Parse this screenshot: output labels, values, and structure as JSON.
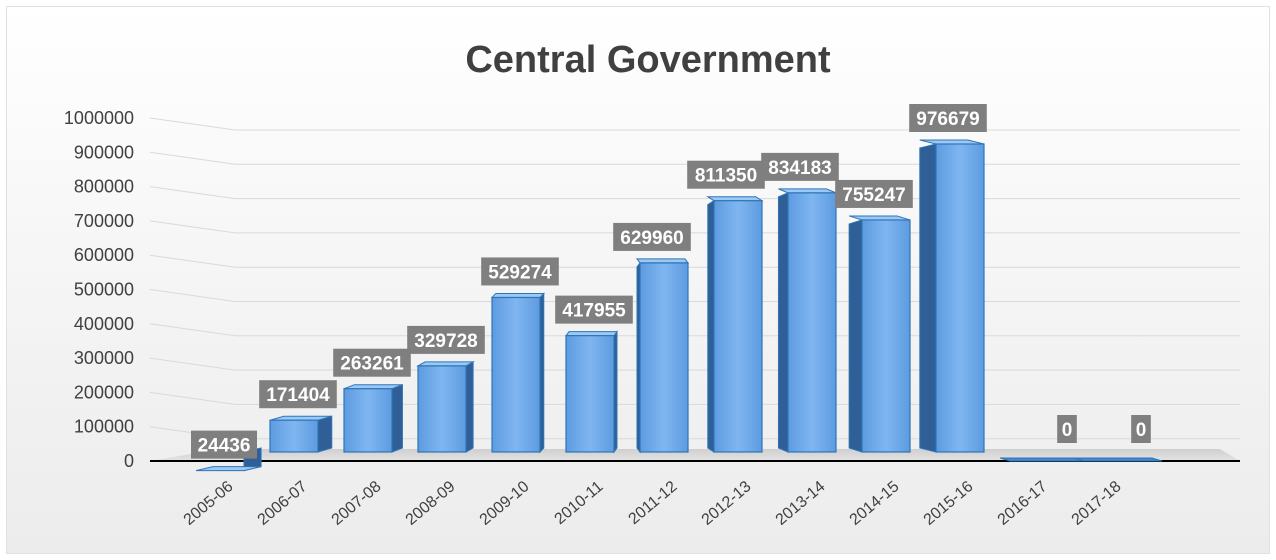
{
  "chart_data": {
    "type": "bar",
    "style": "3d-column",
    "title": "Central Government",
    "xlabel": "",
    "ylabel": "",
    "categories": [
      "2005-06",
      "2006-07",
      "2007-08",
      "2008-09",
      "2009-10",
      "2010-11",
      "2011-12",
      "2012-13",
      "2013-14",
      "2014-15",
      "2015-16",
      "2016-17",
      "2017-18"
    ],
    "values": [
      24436,
      171404,
      263261,
      329728,
      529274,
      417955,
      629960,
      811350,
      834183,
      755247,
      976679,
      0,
      0
    ],
    "data_labels": [
      "24436",
      "171404",
      "263261",
      "329728",
      "529274",
      "417955",
      "629960",
      "811350",
      "834183",
      "755247",
      "976679",
      "0",
      "0"
    ],
    "ylim": [
      0,
      1000000
    ],
    "yticks": [
      0,
      100000,
      200000,
      300000,
      400000,
      500000,
      600000,
      700000,
      800000,
      900000,
      1000000
    ],
    "ytick_labels": [
      "0",
      "100000",
      "200000",
      "300000",
      "400000",
      "500000",
      "600000",
      "700000",
      "800000",
      "900000",
      "1000000"
    ],
    "grid": true,
    "legend": "none",
    "colors": {
      "bar_front": "#6fa8e8",
      "bar_side": "#2f5f96",
      "bar_top": "#9cc8f5",
      "bar_outline": "#2e75b6",
      "label_bg": "#7f7f7f",
      "label_text": "#ffffff",
      "title": "#404040",
      "grid": "#d9d9d9",
      "floor": "#d0d0d0",
      "axis": "#000000"
    }
  }
}
